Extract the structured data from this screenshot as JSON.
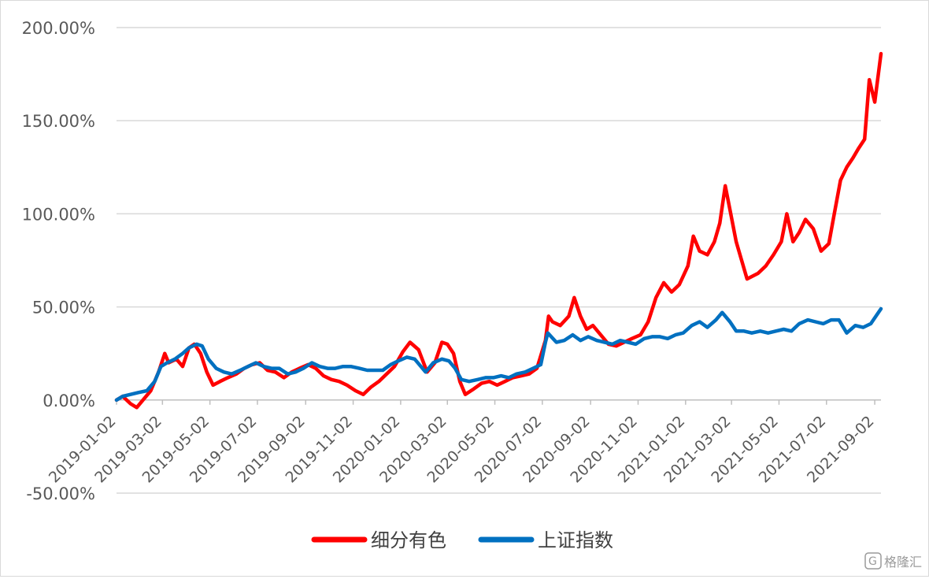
{
  "chart_data": {
    "type": "line",
    "title": "",
    "xlabel": "",
    "ylabel": "",
    "y_format": "percent_2dp",
    "ylim": [
      -50,
      200
    ],
    "yticks": [
      200,
      150,
      100,
      50,
      0,
      -50
    ],
    "ytick_labels": [
      "200.00%",
      "150.00%",
      "100.00%",
      "50.00%",
      "0.00%",
      "-50.00%"
    ],
    "x_range": [
      "2019-01-02",
      "2021-09-10"
    ],
    "xticks": [
      "2019-01-02",
      "2019-03-02",
      "2019-05-02",
      "2019-07-02",
      "2019-09-02",
      "2019-11-02",
      "2020-01-02",
      "2020-03-02",
      "2020-05-02",
      "2020-07-02",
      "2020-09-02",
      "2020-11-02",
      "2021-01-02",
      "2021-03-02",
      "2021-05-02",
      "2021-07-02",
      "2021-09-02"
    ],
    "grid": true,
    "legend_position": "bottom",
    "series": [
      {
        "name": "细分有色",
        "color": "#ff0000",
        "points": [
          [
            "2019-01-02",
            0
          ],
          [
            "2019-01-10",
            2
          ],
          [
            "2019-01-20",
            -2
          ],
          [
            "2019-01-28",
            -4
          ],
          [
            "2019-02-05",
            0
          ],
          [
            "2019-02-15",
            5
          ],
          [
            "2019-02-25",
            15
          ],
          [
            "2019-03-05",
            25
          ],
          [
            "2019-03-10",
            20
          ],
          [
            "2019-03-20",
            22
          ],
          [
            "2019-03-28",
            18
          ],
          [
            "2019-04-05",
            28
          ],
          [
            "2019-04-12",
            30
          ],
          [
            "2019-04-20",
            25
          ],
          [
            "2019-04-28",
            15
          ],
          [
            "2019-05-06",
            8
          ],
          [
            "2019-05-15",
            10
          ],
          [
            "2019-05-25",
            12
          ],
          [
            "2019-06-05",
            14
          ],
          [
            "2019-06-15",
            17
          ],
          [
            "2019-06-25",
            19
          ],
          [
            "2019-07-05",
            20
          ],
          [
            "2019-07-15",
            16
          ],
          [
            "2019-07-25",
            15
          ],
          [
            "2019-08-05",
            12
          ],
          [
            "2019-08-15",
            15
          ],
          [
            "2019-08-25",
            17
          ],
          [
            "2019-09-05",
            19
          ],
          [
            "2019-09-15",
            17
          ],
          [
            "2019-09-25",
            13
          ],
          [
            "2019-10-05",
            11
          ],
          [
            "2019-10-15",
            10
          ],
          [
            "2019-10-25",
            8
          ],
          [
            "2019-11-05",
            5
          ],
          [
            "2019-11-15",
            3
          ],
          [
            "2019-11-25",
            7
          ],
          [
            "2019-12-05",
            10
          ],
          [
            "2019-12-15",
            14
          ],
          [
            "2019-12-25",
            18
          ],
          [
            "2020-01-05",
            26
          ],
          [
            "2020-01-14",
            31
          ],
          [
            "2020-01-25",
            27
          ],
          [
            "2020-02-05",
            15
          ],
          [
            "2020-02-15",
            20
          ],
          [
            "2020-02-24",
            31
          ],
          [
            "2020-03-02",
            30
          ],
          [
            "2020-03-10",
            25
          ],
          [
            "2020-03-18",
            10
          ],
          [
            "2020-03-25",
            3
          ],
          [
            "2020-04-05",
            6
          ],
          [
            "2020-04-15",
            9
          ],
          [
            "2020-04-25",
            10
          ],
          [
            "2020-05-05",
            8
          ],
          [
            "2020-05-15",
            10
          ],
          [
            "2020-05-25",
            12
          ],
          [
            "2020-06-05",
            13
          ],
          [
            "2020-06-15",
            14
          ],
          [
            "2020-06-25",
            17
          ],
          [
            "2020-07-06",
            32
          ],
          [
            "2020-07-10",
            45
          ],
          [
            "2020-07-15",
            42
          ],
          [
            "2020-07-25",
            40
          ],
          [
            "2020-08-05",
            45
          ],
          [
            "2020-08-12",
            55
          ],
          [
            "2020-08-20",
            45
          ],
          [
            "2020-08-28",
            38
          ],
          [
            "2020-09-05",
            40
          ],
          [
            "2020-09-15",
            35
          ],
          [
            "2020-09-25",
            30
          ],
          [
            "2020-10-05",
            29
          ],
          [
            "2020-10-15",
            31
          ],
          [
            "2020-10-25",
            33
          ],
          [
            "2020-11-05",
            35
          ],
          [
            "2020-11-15",
            42
          ],
          [
            "2020-11-25",
            55
          ],
          [
            "2020-12-05",
            63
          ],
          [
            "2020-12-15",
            58
          ],
          [
            "2020-12-25",
            62
          ],
          [
            "2021-01-05",
            72
          ],
          [
            "2021-01-12",
            88
          ],
          [
            "2021-01-20",
            80
          ],
          [
            "2021-01-30",
            78
          ],
          [
            "2021-02-08",
            85
          ],
          [
            "2021-02-15",
            95
          ],
          [
            "2021-02-22",
            115
          ],
          [
            "2021-03-01",
            100
          ],
          [
            "2021-03-08",
            85
          ],
          [
            "2021-03-15",
            75
          ],
          [
            "2021-03-22",
            65
          ],
          [
            "2021-04-05",
            68
          ],
          [
            "2021-04-15",
            72
          ],
          [
            "2021-04-25",
            78
          ],
          [
            "2021-05-05",
            85
          ],
          [
            "2021-05-12",
            100
          ],
          [
            "2021-05-20",
            85
          ],
          [
            "2021-05-28",
            90
          ],
          [
            "2021-06-05",
            97
          ],
          [
            "2021-06-15",
            92
          ],
          [
            "2021-06-25",
            80
          ],
          [
            "2021-07-05",
            84
          ],
          [
            "2021-07-12",
            100
          ],
          [
            "2021-07-20",
            118
          ],
          [
            "2021-07-28",
            125
          ],
          [
            "2021-08-05",
            130
          ],
          [
            "2021-08-12",
            135
          ],
          [
            "2021-08-20",
            140
          ],
          [
            "2021-08-26",
            172
          ],
          [
            "2021-09-02",
            160
          ],
          [
            "2021-09-10",
            186
          ]
        ]
      },
      {
        "name": "上证指数",
        "color": "#0070c0",
        "points": [
          [
            "2019-01-02",
            0
          ],
          [
            "2019-01-10",
            2
          ],
          [
            "2019-01-20",
            3
          ],
          [
            "2019-01-30",
            4
          ],
          [
            "2019-02-10",
            5
          ],
          [
            "2019-02-20",
            10
          ],
          [
            "2019-02-28",
            18
          ],
          [
            "2019-03-08",
            20
          ],
          [
            "2019-03-18",
            22
          ],
          [
            "2019-03-28",
            25
          ],
          [
            "2019-04-05",
            28
          ],
          [
            "2019-04-15",
            30
          ],
          [
            "2019-04-22",
            29
          ],
          [
            "2019-04-30",
            22
          ],
          [
            "2019-05-10",
            17
          ],
          [
            "2019-05-20",
            15
          ],
          [
            "2019-05-30",
            14
          ],
          [
            "2019-06-10",
            16
          ],
          [
            "2019-06-20",
            18
          ],
          [
            "2019-06-30",
            20
          ],
          [
            "2019-07-10",
            18
          ],
          [
            "2019-07-20",
            17
          ],
          [
            "2019-07-30",
            17
          ],
          [
            "2019-08-10",
            14
          ],
          [
            "2019-08-20",
            15
          ],
          [
            "2019-08-30",
            17
          ],
          [
            "2019-09-10",
            20
          ],
          [
            "2019-09-20",
            18
          ],
          [
            "2019-09-30",
            17
          ],
          [
            "2019-10-10",
            17
          ],
          [
            "2019-10-20",
            18
          ],
          [
            "2019-10-30",
            18
          ],
          [
            "2019-11-10",
            17
          ],
          [
            "2019-11-20",
            16
          ],
          [
            "2019-11-30",
            16
          ],
          [
            "2019-12-10",
            16
          ],
          [
            "2019-12-20",
            19
          ],
          [
            "2019-12-30",
            21
          ],
          [
            "2020-01-10",
            23
          ],
          [
            "2020-01-20",
            22
          ],
          [
            "2020-02-03",
            15
          ],
          [
            "2020-02-13",
            20
          ],
          [
            "2020-02-24",
            22
          ],
          [
            "2020-03-04",
            21
          ],
          [
            "2020-03-12",
            17
          ],
          [
            "2020-03-20",
            11
          ],
          [
            "2020-03-30",
            10
          ],
          [
            "2020-04-10",
            11
          ],
          [
            "2020-04-20",
            12
          ],
          [
            "2020-04-30",
            12
          ],
          [
            "2020-05-10",
            13
          ],
          [
            "2020-05-20",
            12
          ],
          [
            "2020-05-30",
            14
          ],
          [
            "2020-06-10",
            15
          ],
          [
            "2020-06-20",
            17
          ],
          [
            "2020-06-30",
            19
          ],
          [
            "2020-07-06",
            31
          ],
          [
            "2020-07-09",
            36
          ],
          [
            "2020-07-20",
            31
          ],
          [
            "2020-07-30",
            32
          ],
          [
            "2020-08-10",
            35
          ],
          [
            "2020-08-20",
            32
          ],
          [
            "2020-08-30",
            34
          ],
          [
            "2020-09-10",
            32
          ],
          [
            "2020-09-20",
            31
          ],
          [
            "2020-09-30",
            30
          ],
          [
            "2020-10-10",
            32
          ],
          [
            "2020-10-20",
            31
          ],
          [
            "2020-10-30",
            30
          ],
          [
            "2020-11-10",
            33
          ],
          [
            "2020-11-20",
            34
          ],
          [
            "2020-11-30",
            34
          ],
          [
            "2020-12-10",
            33
          ],
          [
            "2020-12-20",
            35
          ],
          [
            "2020-12-30",
            36
          ],
          [
            "2021-01-10",
            40
          ],
          [
            "2021-01-20",
            42
          ],
          [
            "2021-01-30",
            39
          ],
          [
            "2021-02-10",
            43
          ],
          [
            "2021-02-18",
            47
          ],
          [
            "2021-02-28",
            42
          ],
          [
            "2021-03-08",
            37
          ],
          [
            "2021-03-18",
            37
          ],
          [
            "2021-03-28",
            36
          ],
          [
            "2021-04-08",
            37
          ],
          [
            "2021-04-18",
            36
          ],
          [
            "2021-04-28",
            37
          ],
          [
            "2021-05-08",
            38
          ],
          [
            "2021-05-18",
            37
          ],
          [
            "2021-05-28",
            41
          ],
          [
            "2021-06-08",
            43
          ],
          [
            "2021-06-18",
            42
          ],
          [
            "2021-06-28",
            41
          ],
          [
            "2021-07-08",
            43
          ],
          [
            "2021-07-18",
            43
          ],
          [
            "2021-07-28",
            36
          ],
          [
            "2021-08-08",
            40
          ],
          [
            "2021-08-18",
            39
          ],
          [
            "2021-08-28",
            41
          ],
          [
            "2021-09-05",
            46
          ],
          [
            "2021-09-10",
            49
          ]
        ]
      }
    ]
  },
  "watermark": {
    "text": "格隆汇"
  }
}
